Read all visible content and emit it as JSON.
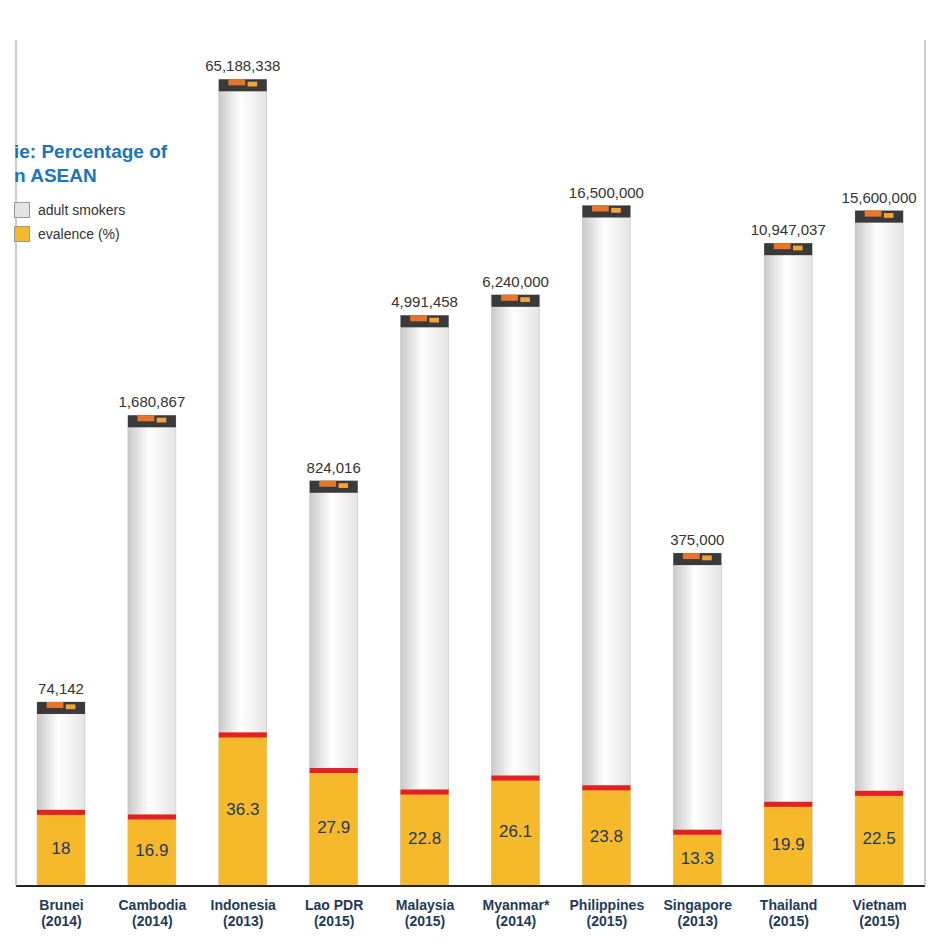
{
  "chart_data": {
    "type": "bar",
    "title": "ie: Percentage of\nn ASEAN",
    "categories": [
      "Brunei\n(2014)",
      "Cambodia\n(2014)",
      "Indonesia\n(2013)",
      "Lao PDR\n(2015)",
      "Malaysia\n(2015)",
      "Myanmar*\n(2014)",
      "Philippines\n(2015)",
      "Singapore\n(2013)",
      "Thailand\n(2015)",
      "Vietnam\n(2015)"
    ],
    "series": [
      {
        "name": "adult smokers",
        "color": "#e4e4e4",
        "values": [
          74142,
          1680867,
          65188338,
          824016,
          4991458,
          6240000,
          16500000,
          375000,
          10947037,
          15600000
        ],
        "value_labels": [
          "74,142",
          "1,680,867",
          "65,188,338",
          "824,016",
          "4,991,458",
          "6,240,000",
          "16,500,000",
          "375,000",
          "10,947,037",
          "15,600,000"
        ]
      },
      {
        "name": "evalence (%)",
        "color": "#f6b92c",
        "axis": "y2",
        "values": [
          18,
          16.9,
          36.3,
          27.9,
          22.8,
          26.1,
          23.8,
          13.3,
          19.9,
          22.5
        ]
      }
    ],
    "ylim": [
      10000,
      100000000
    ],
    "y2lim": [
      0,
      200
    ],
    "log": "y",
    "tick_labels": false,
    "data_labels": true,
    "legend": "upper left"
  }
}
